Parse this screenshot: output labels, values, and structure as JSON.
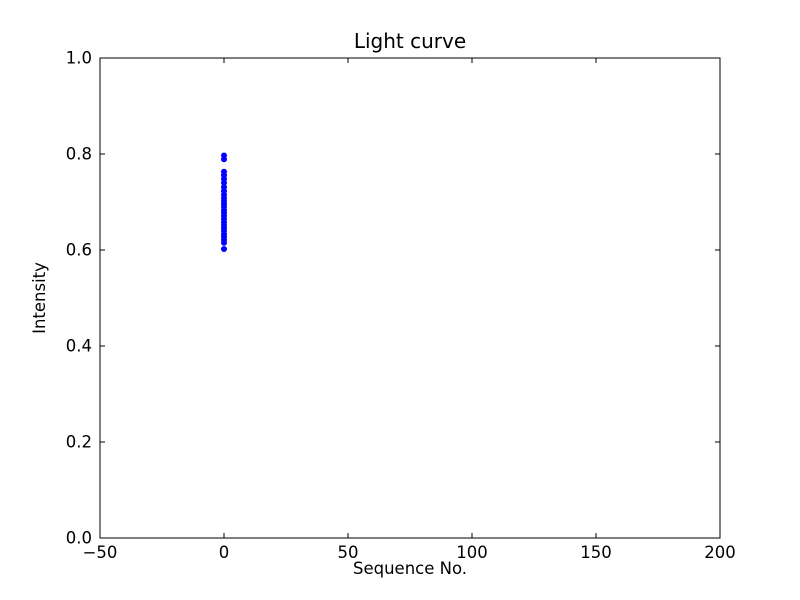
{
  "chart_data": {
    "type": "scatter",
    "title": "Light curve",
    "xlabel": "Sequence No.",
    "ylabel": "Intensity",
    "xlim": [
      -50,
      200
    ],
    "ylim": [
      0.0,
      1.0
    ],
    "xticks": [
      -50,
      0,
      50,
      100,
      150,
      200
    ],
    "xtick_labels": [
      "−50",
      "0",
      "50",
      "100",
      "150",
      "200"
    ],
    "yticks": [
      0.0,
      0.2,
      0.4,
      0.6,
      0.8,
      1.0
    ],
    "ytick_labels": [
      "0.0",
      "0.2",
      "0.4",
      "0.6",
      "0.8",
      "1.0"
    ],
    "grid": false,
    "marker_color": "#0000ff",
    "marker_radius": 3,
    "frame_color": "#000000",
    "background_color": "#ffffff",
    "series": [
      {
        "name": "intensity",
        "x": [
          0,
          0,
          0,
          0,
          0,
          0,
          0,
          0,
          0,
          0,
          0,
          0,
          0,
          0,
          0,
          0,
          0,
          0,
          0,
          0,
          0,
          0,
          0,
          0,
          0,
          0
        ],
        "y": [
          0.797,
          0.789,
          0.763,
          0.756,
          0.748,
          0.74,
          0.731,
          0.723,
          0.715,
          0.708,
          0.702,
          0.696,
          0.69,
          0.683,
          0.677,
          0.671,
          0.665,
          0.658,
          0.652,
          0.646,
          0.64,
          0.633,
          0.627,
          0.621,
          0.615,
          0.602
        ]
      }
    ]
  }
}
